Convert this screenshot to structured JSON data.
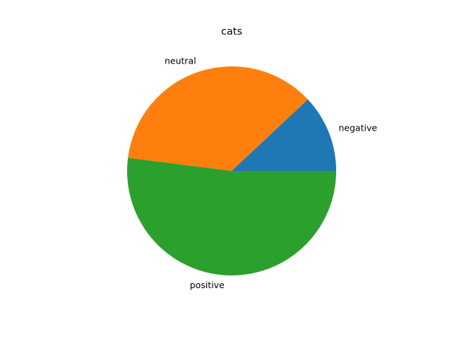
{
  "chart_data": {
    "type": "pie",
    "title": "cats",
    "slices": [
      {
        "label": "negative",
        "value": 12,
        "color": "#1f77b4"
      },
      {
        "label": "neutral",
        "value": 36,
        "color": "#ff7f0e"
      },
      {
        "label": "positive",
        "value": 52,
        "color": "#2ca02c"
      }
    ],
    "start_angle_deg": 0,
    "direction": "counterclockwise",
    "legend": "none",
    "grid": false
  }
}
